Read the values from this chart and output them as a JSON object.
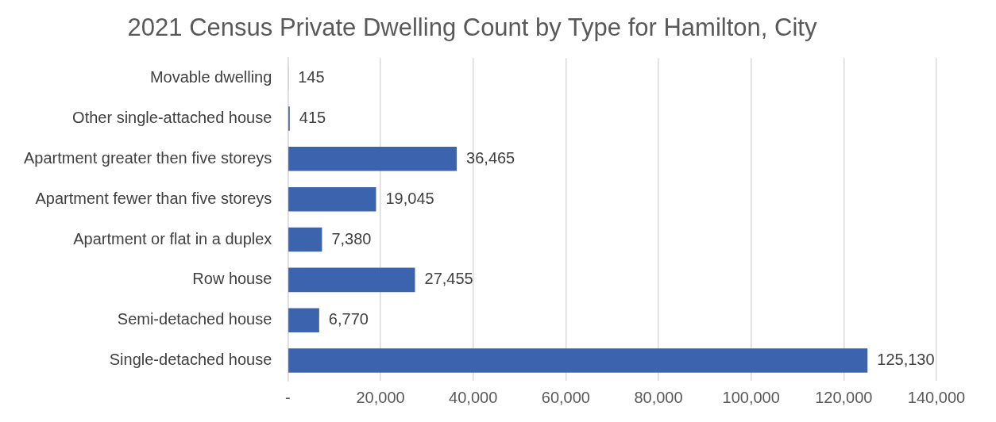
{
  "chart_data": {
    "type": "bar",
    "orientation": "horizontal",
    "title": "2021 Census Private Dwelling Count by Type for Hamilton, City",
    "categories": [
      "Movable dwelling",
      "Other single-attached house",
      "Apartment greater then five storeys",
      "Apartment fewer than five storeys",
      "Apartment or flat in a duplex",
      "Row house",
      "Semi-detached house",
      "Single-detached house"
    ],
    "values": [
      145,
      415,
      36465,
      19045,
      7380,
      27455,
      6770,
      125130
    ],
    "value_labels": [
      "145",
      "415",
      "36,465",
      "19,045",
      "7,380",
      "27,455",
      "6,770",
      "125,130"
    ],
    "color": "#3c64ae",
    "xlim": [
      0,
      140000
    ],
    "xticks": [
      {
        "value": 0,
        "label": "-"
      },
      {
        "value": 20000,
        "label": "20,000"
      },
      {
        "value": 40000,
        "label": "40,000"
      },
      {
        "value": 60000,
        "label": "60,000"
      },
      {
        "value": 80000,
        "label": "80,000"
      },
      {
        "value": 100000,
        "label": "100,000"
      },
      {
        "value": 120000,
        "label": "120,000"
      },
      {
        "value": 140000,
        "label": "140,000"
      }
    ],
    "grid": "x",
    "legend": false
  }
}
